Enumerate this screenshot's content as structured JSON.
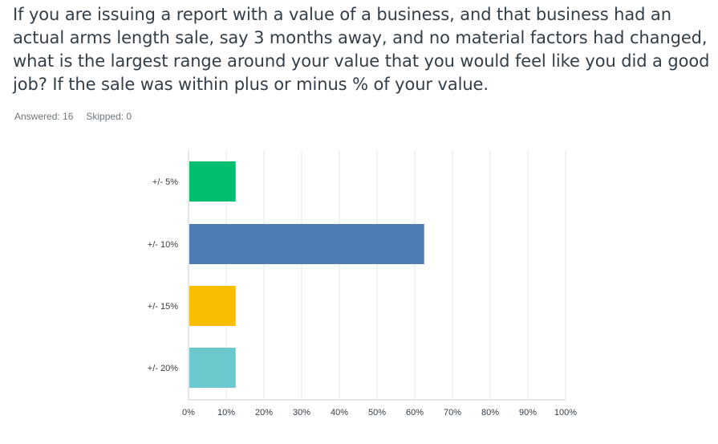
{
  "question": {
    "text": "If you are issuing a report with a value of a business, and that business had an actual arms length sale, say 3 months away, and no material factors had changed, what is the largest range around your value that you would feel like you did a good job? If the sale was within plus or minus % of your value."
  },
  "stats": {
    "answered_label": "Answered: 16",
    "skipped_label": "Skipped: 0"
  },
  "chart_data": {
    "type": "bar",
    "orientation": "horizontal",
    "categories": [
      "+/- 5%",
      "+/- 10%",
      "+/- 15%",
      "+/- 20%"
    ],
    "values": [
      12.5,
      62.5,
      12.5,
      12.5
    ],
    "colors": [
      "#00bf6f",
      "#507cb6",
      "#f9be00",
      "#6bc8cd"
    ],
    "xticks": [
      "0%",
      "10%",
      "20%",
      "30%",
      "40%",
      "50%",
      "60%",
      "70%",
      "80%",
      "90%",
      "100%"
    ],
    "xlim": [
      0,
      100
    ],
    "grid": true,
    "title": "",
    "xlabel": "",
    "ylabel": ""
  }
}
